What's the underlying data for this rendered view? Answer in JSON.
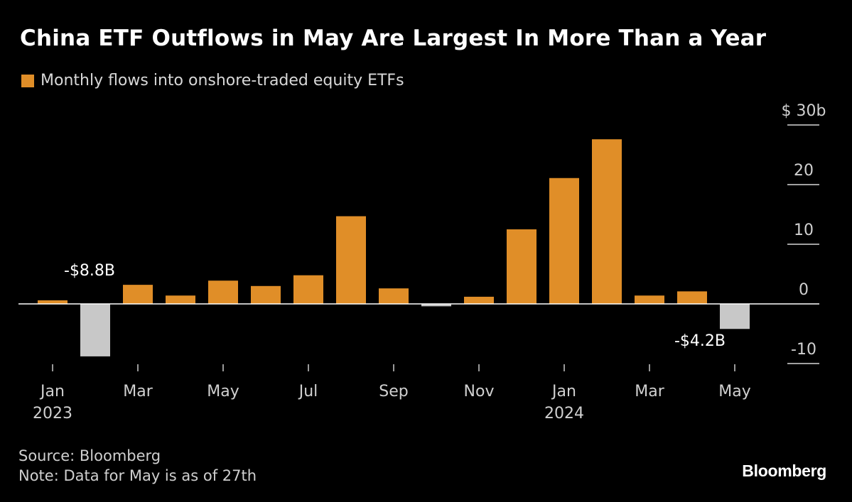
{
  "colors": {
    "background": "#000000",
    "positive_bar": "#e08e28",
    "negative_bar": "#c8c8c8",
    "text": "#ffffff",
    "muted_text": "#d0d0d0"
  },
  "chart_data": {
    "type": "bar",
    "title": "China ETF Outflows in May Are Largest In More Than a Year",
    "legend": [
      {
        "label": "Monthly flows into onshore-traded equity ETFs",
        "color": "#e08e28"
      }
    ],
    "months": [
      "Jan 2023",
      "Feb 2023",
      "Mar 2023",
      "Apr 2023",
      "May 2023",
      "Jun 2023",
      "Jul 2023",
      "Aug 2023",
      "Sep 2023",
      "Oct 2023",
      "Nov 2023",
      "Dec 2023",
      "Jan 2024",
      "Feb 2024",
      "Mar 2024",
      "Apr 2024",
      "May 2024"
    ],
    "values": [
      0.6,
      -8.8,
      3.2,
      1.4,
      3.9,
      3.0,
      4.8,
      14.7,
      2.6,
      -0.4,
      1.2,
      12.5,
      21.1,
      27.6,
      1.4,
      2.1,
      -4.2
    ],
    "xticks": [
      {
        "index": 0,
        "label": "Jan",
        "year": "2023"
      },
      {
        "index": 2,
        "label": "Mar"
      },
      {
        "index": 4,
        "label": "May"
      },
      {
        "index": 6,
        "label": "Jul"
      },
      {
        "index": 8,
        "label": "Sep"
      },
      {
        "index": 10,
        "label": "Nov"
      },
      {
        "index": 12,
        "label": "Jan",
        "year": "2024"
      },
      {
        "index": 14,
        "label": "Mar"
      },
      {
        "index": 16,
        "label": "May"
      }
    ],
    "yticks": [
      {
        "value": 30,
        "label": "$ 30b"
      },
      {
        "value": 20,
        "label": "20"
      },
      {
        "value": 10,
        "label": "10"
      },
      {
        "value": 0,
        "label": "0"
      },
      {
        "value": -10,
        "label": "-10"
      }
    ],
    "ylim": [
      -10,
      30
    ],
    "annotations": [
      {
        "index": 1,
        "text": "-$8.8B",
        "placement": "above-left"
      },
      {
        "index": 16,
        "text": "-$4.2B",
        "placement": "below-left"
      }
    ],
    "xlabel": "",
    "ylabel": ""
  },
  "footer": {
    "source": "Source: Bloomberg",
    "note": "Note: Data for May is as of 27th"
  },
  "brand": "Bloomberg"
}
